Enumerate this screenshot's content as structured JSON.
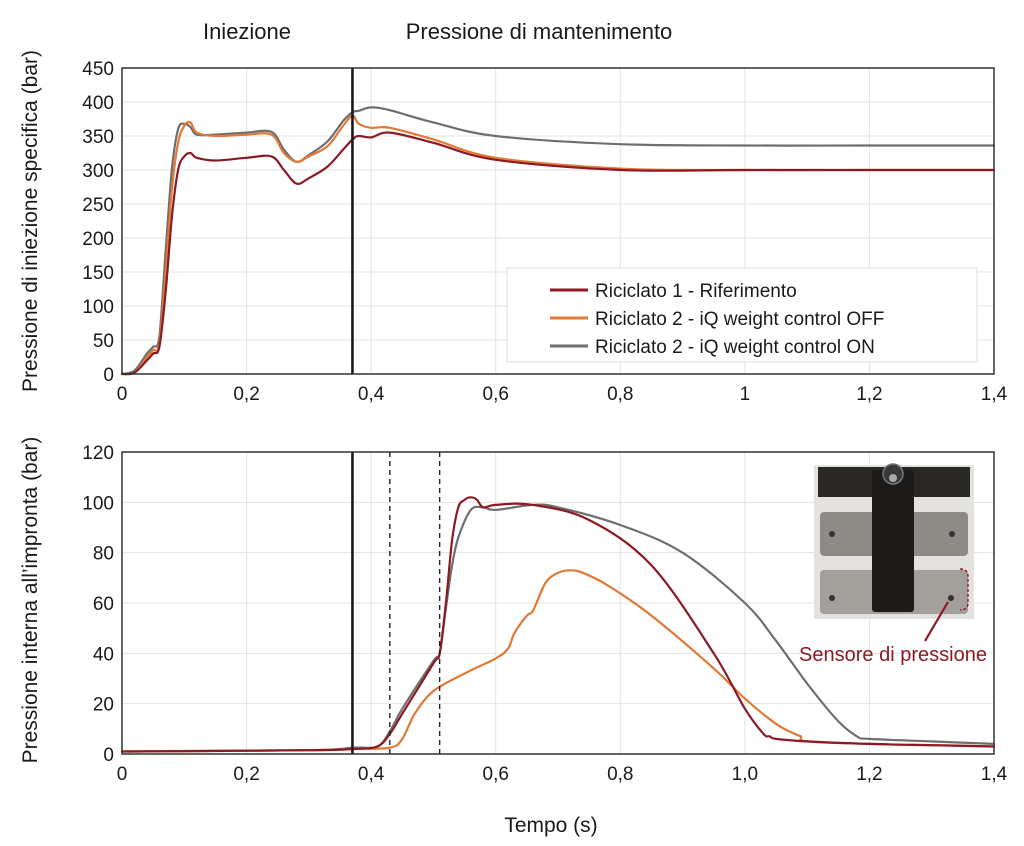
{
  "phases": {
    "injection": "Iniezione",
    "holding": "Pressione di mantenimento"
  },
  "colors": {
    "riferimento": "#8b1a24",
    "off": "#e07a35",
    "on": "#6e6e6e",
    "grid": "#e3e3e3",
    "annotation": "#8b1a24"
  },
  "chart_data": [
    {
      "type": "line",
      "ylabel": "Pressione di iniezione specifica (bar)",
      "xlabel": "",
      "xlim": [
        0,
        1.4
      ],
      "ylim": [
        0,
        450
      ],
      "x_ticks": [
        0,
        0.2,
        0.4,
        0.6,
        0.8,
        1,
        1.2,
        1.4
      ],
      "x_tick_labels": [
        "0",
        "0,2",
        "0,4",
        "0,6",
        "0,8",
        "1",
        "1,2",
        "1,4"
      ],
      "y_ticks": [
        0,
        50,
        100,
        150,
        200,
        250,
        300,
        350,
        400,
        450
      ],
      "y_tick_labels": [
        "0",
        "50",
        "100",
        "150",
        "200",
        "250",
        "300",
        "350",
        "400",
        "450"
      ],
      "grid": true,
      "legend_position": "bottom-right",
      "vertical_lines": [
        {
          "x": 0.37,
          "style": "solid"
        }
      ],
      "series": [
        {
          "name": "Riciclato 1 - Riferimento",
          "color": "#8b1a24",
          "x": [
            0,
            0.02,
            0.04,
            0.05,
            0.06,
            0.07,
            0.08,
            0.09,
            0.1,
            0.11,
            0.12,
            0.15,
            0.2,
            0.24,
            0.26,
            0.28,
            0.3,
            0.33,
            0.355,
            0.37,
            0.38,
            0.4,
            0.43,
            0.5,
            0.6,
            0.8,
            1.0,
            1.2,
            1.4
          ],
          "y": [
            0,
            2,
            20,
            30,
            40,
            120,
            230,
            300,
            320,
            325,
            318,
            314,
            318,
            320,
            300,
            280,
            288,
            305,
            330,
            345,
            350,
            348,
            355,
            340,
            315,
            300,
            300,
            300,
            300
          ]
        },
        {
          "name": "Riciclato 2 - iQ weight control OFF",
          "color": "#e07a35",
          "x": [
            0,
            0.02,
            0.04,
            0.05,
            0.06,
            0.07,
            0.08,
            0.09,
            0.1,
            0.11,
            0.12,
            0.15,
            0.2,
            0.24,
            0.26,
            0.28,
            0.3,
            0.33,
            0.355,
            0.37,
            0.38,
            0.4,
            0.43,
            0.5,
            0.6,
            0.8,
            1.0,
            1.2,
            1.4
          ],
          "y": [
            0,
            2,
            25,
            35,
            45,
            150,
            270,
            340,
            365,
            370,
            355,
            350,
            352,
            352,
            325,
            312,
            320,
            335,
            365,
            380,
            368,
            362,
            362,
            345,
            318,
            302,
            300,
            300,
            300
          ]
        },
        {
          "name": "Riciclato 2 - iQ weight control ON",
          "color": "#6e6e6e",
          "x": [
            0,
            0.02,
            0.04,
            0.05,
            0.06,
            0.07,
            0.08,
            0.09,
            0.1,
            0.11,
            0.12,
            0.15,
            0.2,
            0.24,
            0.26,
            0.28,
            0.3,
            0.33,
            0.355,
            0.37,
            0.38,
            0.4,
            0.43,
            0.5,
            0.6,
            0.8,
            1.0,
            1.2,
            1.4
          ],
          "y": [
            0,
            5,
            30,
            40,
            55,
            180,
            300,
            360,
            368,
            363,
            352,
            352,
            355,
            356,
            330,
            312,
            322,
            342,
            372,
            385,
            387,
            392,
            388,
            370,
            350,
            338,
            336,
            336,
            336
          ]
        }
      ]
    },
    {
      "type": "line",
      "ylabel": "Pressione interna all’impronta (bar)",
      "xlabel": "Tempo (s)",
      "xlim": [
        0,
        1.4
      ],
      "ylim": [
        0,
        120
      ],
      "x_ticks": [
        0,
        0.2,
        0.4,
        0.6,
        0.8,
        1,
        1.2,
        1.4
      ],
      "x_tick_labels": [
        "0",
        "0,2",
        "0,4",
        "0,6",
        "0,8",
        "1,0",
        "1,2",
        "1,4"
      ],
      "y_ticks": [
        0,
        20,
        40,
        60,
        80,
        100,
        120
      ],
      "y_tick_labels": [
        "0",
        "20",
        "40",
        "60",
        "80",
        "100",
        "120"
      ],
      "grid": true,
      "vertical_lines": [
        {
          "x": 0.37,
          "style": "solid"
        },
        {
          "x": 0.43,
          "style": "dashed"
        },
        {
          "x": 0.51,
          "style": "dashed"
        }
      ],
      "annotation": "Sensore di pressione",
      "series": [
        {
          "name": "Riciclato 1 - Riferimento",
          "color": "#8b1a24",
          "x": [
            0,
            0.3,
            0.37,
            0.41,
            0.43,
            0.45,
            0.5,
            0.51,
            0.52,
            0.53,
            0.54,
            0.55,
            0.56,
            0.57,
            0.58,
            0.6,
            0.66,
            0.75,
            0.85,
            0.95,
            1.0,
            1.03,
            1.04,
            1.05,
            1.1,
            1.2,
            1.3,
            1.4
          ],
          "y": [
            1,
            1.5,
            2,
            3,
            8,
            16,
            36,
            40,
            60,
            85,
            98,
            101,
            102,
            101,
            98,
            99,
            99,
            93,
            75,
            40,
            18,
            8,
            7,
            6,
            5,
            4,
            3.5,
            3
          ],
          "line_x": [
            0,
            0.3,
            0.37,
            0.41,
            0.43,
            0.45,
            0.5,
            0.51,
            0.52,
            0.53,
            0.54,
            0.55,
            0.56,
            0.57,
            0.58,
            0.6,
            0.66,
            0.75,
            0.85,
            0.95,
            1.0,
            1.03,
            1.04,
            1.05,
            1.1,
            1.2,
            1.3,
            1.4
          ]
        },
        {
          "name": "Riciclato 2 - iQ weight control OFF",
          "color": "#e07a35",
          "x": [
            0,
            0.3,
            0.37,
            0.43,
            0.45,
            0.47,
            0.5,
            0.55,
            0.6,
            0.62,
            0.63,
            0.65,
            0.66,
            0.68,
            0.7,
            0.72,
            0.74,
            0.78,
            0.85,
            0.95,
            1.0,
            1.05,
            1.08,
            1.09,
            1.1,
            1.2,
            1.3,
            1.4
          ],
          "y": [
            1,
            1.5,
            2,
            2.5,
            6,
            16,
            25,
            32,
            38,
            42,
            48,
            55,
            57,
            68,
            72,
            73,
            72,
            67,
            55,
            34,
            22,
            12,
            8,
            7,
            5,
            4,
            3.5,
            3
          ]
        },
        {
          "name": "Riciclato 2 - iQ weight control ON",
          "color": "#6e6e6e",
          "x": [
            0,
            0.3,
            0.37,
            0.41,
            0.43,
            0.45,
            0.5,
            0.51,
            0.52,
            0.53,
            0.54,
            0.56,
            0.58,
            0.6,
            0.66,
            0.7,
            0.8,
            0.9,
            1.0,
            1.05,
            1.1,
            1.15,
            1.18,
            1.2,
            1.3,
            1.4
          ],
          "y": [
            1,
            1.5,
            2.5,
            3,
            9,
            18,
            37,
            40,
            58,
            75,
            86,
            97,
            98,
            97,
            99,
            98,
            91,
            80,
            60,
            45,
            28,
            13,
            7,
            6,
            5,
            4
          ]
        }
      ]
    }
  ]
}
